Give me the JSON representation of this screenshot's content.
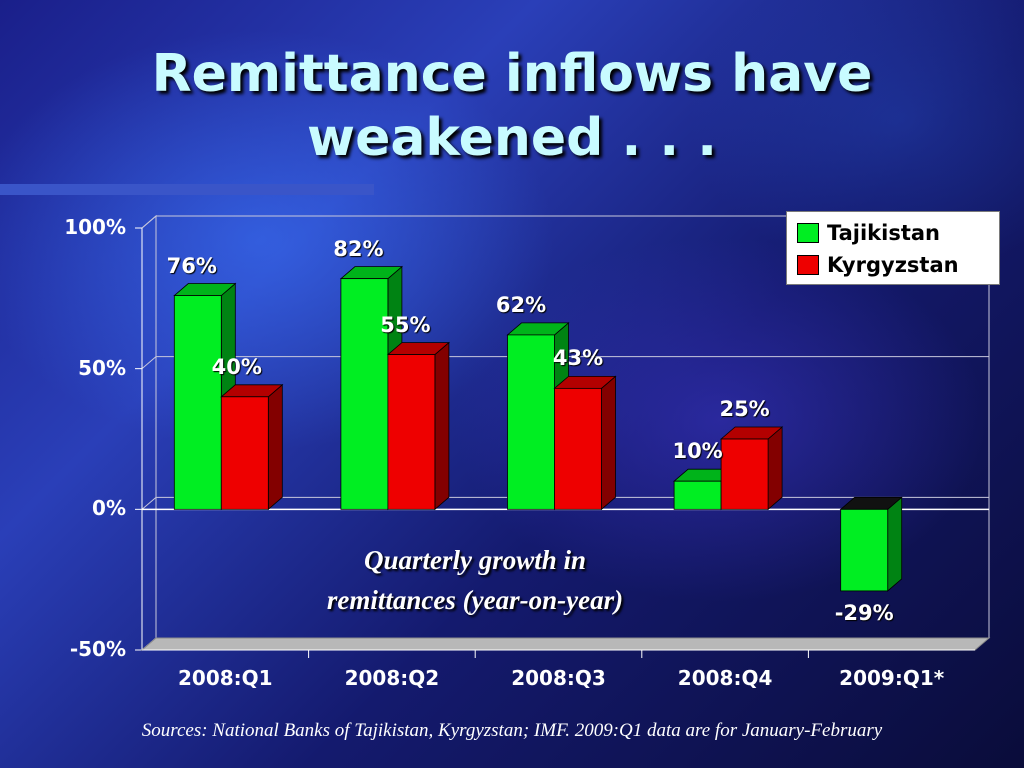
{
  "slide": {
    "title_lines": [
      "Remittance inflows have",
      "weakened . . ."
    ],
    "sources": "Sources: National Banks of Tajikistan, Kyrgyzstan; IMF. 2009:Q1 data are for January-February"
  },
  "chart_data": {
    "type": "bar",
    "categories": [
      "2008:Q1",
      "2008:Q2",
      "2008:Q3",
      "2008:Q4",
      "2009:Q1*"
    ],
    "series": [
      {
        "name": "Tajikistan",
        "color": "#00ee22",
        "values": [
          76,
          82,
          62,
          10,
          -29
        ],
        "labels": [
          "76%",
          "82%",
          "62%",
          "10%",
          "-29%"
        ]
      },
      {
        "name": "Kyrgyzstan",
        "color": "#ee0000",
        "values": [
          40,
          55,
          43,
          25,
          null
        ],
        "labels": [
          "40%",
          "55%",
          "43%",
          "25%",
          ""
        ]
      }
    ],
    "yticks": [
      "100%",
      "50%",
      "0%",
      "-50%"
    ],
    "ylim": [
      -50,
      100
    ],
    "annotation_lines": [
      "Quarterly growth in",
      "remittances (year-on-year)"
    ],
    "legend_position": "top-right",
    "grid": true
  }
}
